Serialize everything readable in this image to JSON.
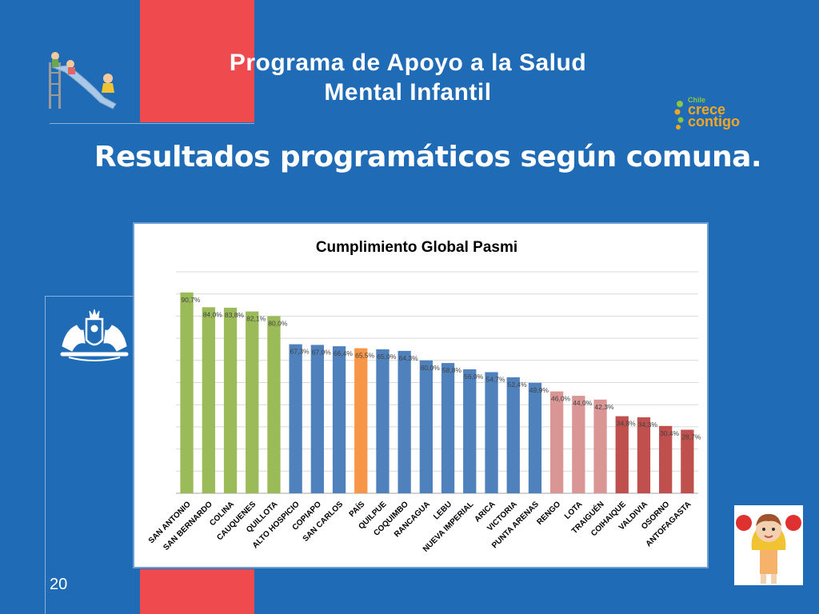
{
  "header": {
    "title_line1": "Programa de Apoyo a la Salud",
    "title_line2": "Mental Infantil"
  },
  "main_title": "Resultados programáticos según comuna.",
  "page_number": "20",
  "logo": {
    "small": "Chile",
    "line1": "crece",
    "line2": "contigo"
  },
  "colors": {
    "background": "#1f6bb5",
    "accent_red": "#ef4b4f",
    "green": "#9bbb59",
    "blue": "#4f81bd",
    "orange": "#f79646",
    "pink": "#d99694",
    "dark_red": "#c0504d"
  },
  "chart_data": {
    "type": "bar",
    "title": "Cumplimiento Global Pasmi",
    "xlabel": "",
    "ylabel": "",
    "ylim": [
      0,
      100
    ],
    "grid": true,
    "categories": [
      "SAN ANTONIO",
      "SAN BERNARDO",
      "COLINA",
      "CAUQUENES",
      "QUILLOTA",
      "ALTO HOSPICIO",
      "COPIAPO",
      "SAN CARLOS",
      "PAÍS",
      "QUILPUE",
      "COQUIMBO",
      "RANCAGUA",
      "LEBU",
      "NUEVA IMPERIAL",
      "ARICA",
      "VICTORIA",
      "PUNTA ARENAS",
      "RENGO",
      "LOTA",
      "TRAIGUÉN",
      "COIHAIQUE",
      "VALDIVIA",
      "OSORNO",
      "ANTOFAGASTA"
    ],
    "values": [
      90.7,
      84.0,
      83.8,
      82.1,
      80.0,
      67.3,
      67.0,
      66.4,
      65.5,
      65.0,
      64.3,
      60.0,
      58.8,
      56.0,
      54.7,
      52.4,
      49.9,
      46.0,
      44.0,
      42.3,
      34.8,
      34.3,
      30.4,
      28.7
    ],
    "labels": [
      "90,7%",
      "84,0%",
      "83,8%",
      "82,1%",
      "80,0%",
      "67,3%",
      "67,0%",
      "66,4%",
      "65,5%",
      "65,0%",
      "64,3%",
      "60,0%",
      "58,8%",
      "56,0%",
      "54,7%",
      "52,4%",
      "49,9%",
      "46,0%",
      "44,0%",
      "42,3%",
      "34,8%",
      "34,3%",
      "30,4%",
      "28,7%"
    ],
    "bar_colors": [
      "#9bbb59",
      "#9bbb59",
      "#9bbb59",
      "#9bbb59",
      "#9bbb59",
      "#4f81bd",
      "#4f81bd",
      "#4f81bd",
      "#f79646",
      "#4f81bd",
      "#4f81bd",
      "#4f81bd",
      "#4f81bd",
      "#4f81bd",
      "#4f81bd",
      "#4f81bd",
      "#4f81bd",
      "#d99694",
      "#d99694",
      "#d99694",
      "#c0504d",
      "#c0504d",
      "#c0504d",
      "#c0504d"
    ]
  }
}
